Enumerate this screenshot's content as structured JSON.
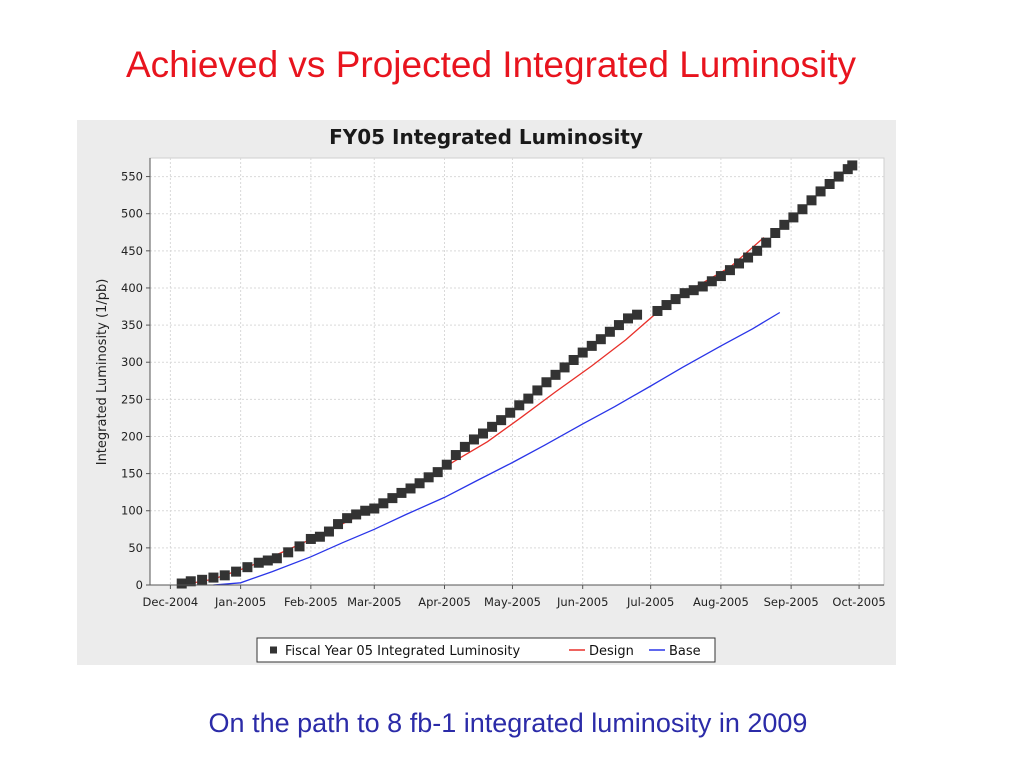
{
  "slide": {
    "title": "Achieved vs Projected Integrated Luminosity",
    "subtitle": "On the path to 8 fb-1 integrated luminosity in 2009"
  },
  "chart_data": {
    "type": "line",
    "title": "FY05 Integrated Luminosity",
    "xlabel": "",
    "ylabel": "Integrated Luminosity (1/pb)",
    "x_ticks": [
      "Dec-2004",
      "Jan-2005",
      "Feb-2005",
      "Mar-2005",
      "Apr-2005",
      "May-2005",
      "Jun-2005",
      "Jul-2005",
      "Aug-2005",
      "Sep-2005",
      "Oct-2005"
    ],
    "y_ticks": [
      0,
      50,
      100,
      150,
      200,
      250,
      300,
      350,
      400,
      450,
      500,
      550
    ],
    "xlim": [
      "2004-11-22",
      "2005-10-12"
    ],
    "ylim": [
      0,
      575
    ],
    "grid": true,
    "legend_position": "bottom",
    "series": [
      {
        "name": "Fiscal Year 05 Integrated Luminosity",
        "style": "square-markers",
        "color": "#333333",
        "points": [
          [
            "2004-12-06",
            2
          ],
          [
            "2004-12-10",
            5
          ],
          [
            "2004-12-15",
            7
          ],
          [
            "2004-12-20",
            10
          ],
          [
            "2004-12-25",
            13
          ],
          [
            "2004-12-30",
            18
          ],
          [
            "2005-01-04",
            24
          ],
          [
            "2005-01-09",
            30
          ],
          [
            "2005-01-13",
            33
          ],
          [
            "2005-01-17",
            36
          ],
          [
            "2005-01-22",
            44
          ],
          [
            "2005-01-27",
            52
          ],
          [
            "2005-02-01",
            62
          ],
          [
            "2005-02-05",
            65
          ],
          [
            "2005-02-09",
            72
          ],
          [
            "2005-02-13",
            82
          ],
          [
            "2005-02-17",
            90
          ],
          [
            "2005-02-21",
            95
          ],
          [
            "2005-02-25",
            100
          ],
          [
            "2005-03-01",
            103
          ],
          [
            "2005-03-05",
            110
          ],
          [
            "2005-03-09",
            117
          ],
          [
            "2005-03-13",
            124
          ],
          [
            "2005-03-17",
            130
          ],
          [
            "2005-03-21",
            137
          ],
          [
            "2005-03-25",
            145
          ],
          [
            "2005-03-29",
            152
          ],
          [
            "2005-04-02",
            162
          ],
          [
            "2005-04-06",
            175
          ],
          [
            "2005-04-10",
            186
          ],
          [
            "2005-04-14",
            196
          ],
          [
            "2005-04-18",
            204
          ],
          [
            "2005-04-22",
            213
          ],
          [
            "2005-04-26",
            222
          ],
          [
            "2005-04-30",
            232
          ],
          [
            "2005-05-04",
            242
          ],
          [
            "2005-05-08",
            251
          ],
          [
            "2005-05-12",
            262
          ],
          [
            "2005-05-16",
            273
          ],
          [
            "2005-05-20",
            283
          ],
          [
            "2005-05-24",
            293
          ],
          [
            "2005-05-28",
            303
          ],
          [
            "2005-06-01",
            313
          ],
          [
            "2005-06-05",
            322
          ],
          [
            "2005-06-09",
            331
          ],
          [
            "2005-06-13",
            341
          ],
          [
            "2005-06-17",
            350
          ],
          [
            "2005-06-21",
            359
          ],
          [
            "2005-06-25",
            364
          ],
          [
            "2005-07-04",
            369
          ],
          [
            "2005-07-08",
            377
          ],
          [
            "2005-07-12",
            385
          ],
          [
            "2005-07-16",
            393
          ],
          [
            "2005-07-20",
            397
          ],
          [
            "2005-07-24",
            402
          ],
          [
            "2005-07-28",
            409
          ],
          [
            "2005-08-01",
            416
          ],
          [
            "2005-08-05",
            424
          ],
          [
            "2005-08-09",
            433
          ],
          [
            "2005-08-13",
            441
          ],
          [
            "2005-08-17",
            450
          ],
          [
            "2005-08-21",
            461
          ],
          [
            "2005-08-25",
            474
          ],
          [
            "2005-08-29",
            485
          ],
          [
            "2005-09-02",
            495
          ],
          [
            "2005-09-06",
            506
          ],
          [
            "2005-09-10",
            518
          ],
          [
            "2005-09-14",
            530
          ],
          [
            "2005-09-18",
            540
          ],
          [
            "2005-09-22",
            550
          ],
          [
            "2005-09-26",
            560
          ],
          [
            "2005-09-28",
            565
          ]
        ]
      },
      {
        "name": "Design",
        "style": "line",
        "color": "#e8302a",
        "points": [
          [
            "2004-12-06",
            0
          ],
          [
            "2004-12-20",
            8
          ],
          [
            "2005-01-05",
            25
          ],
          [
            "2005-01-20",
            45
          ],
          [
            "2005-02-05",
            67
          ],
          [
            "2005-02-20",
            90
          ],
          [
            "2005-03-05",
            112
          ],
          [
            "2005-03-20",
            135
          ],
          [
            "2005-04-05",
            166
          ],
          [
            "2005-04-20",
            193
          ],
          [
            "2005-05-05",
            226
          ],
          [
            "2005-05-20",
            260
          ],
          [
            "2005-06-05",
            295
          ],
          [
            "2005-06-20",
            330
          ],
          [
            "2005-07-05",
            370
          ],
          [
            "2005-07-20",
            400
          ],
          [
            "2005-08-05",
            428
          ],
          [
            "2005-08-20",
            468
          ]
        ]
      },
      {
        "name": "Base",
        "style": "line",
        "color": "#2a35e8",
        "points": [
          [
            "2004-12-20",
            0
          ],
          [
            "2005-01-01",
            3
          ],
          [
            "2005-01-15",
            18
          ],
          [
            "2005-02-01",
            38
          ],
          [
            "2005-02-15",
            57
          ],
          [
            "2005-03-01",
            75
          ],
          [
            "2005-03-15",
            95
          ],
          [
            "2005-04-01",
            118
          ],
          [
            "2005-04-15",
            140
          ],
          [
            "2005-05-01",
            165
          ],
          [
            "2005-05-15",
            188
          ],
          [
            "2005-06-01",
            217
          ],
          [
            "2005-06-15",
            240
          ],
          [
            "2005-07-01",
            268
          ],
          [
            "2005-07-15",
            293
          ],
          [
            "2005-08-01",
            322
          ],
          [
            "2005-08-15",
            345
          ],
          [
            "2005-08-27",
            367
          ]
        ]
      }
    ]
  }
}
